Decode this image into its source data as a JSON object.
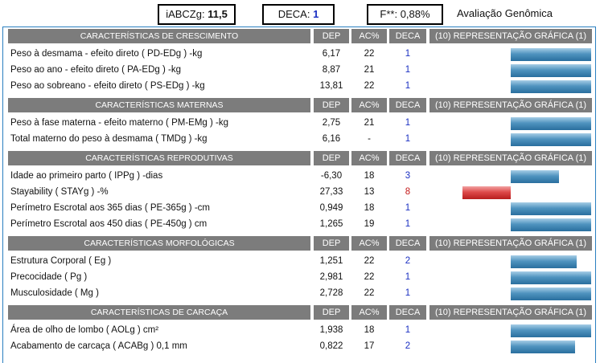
{
  "summary": {
    "iabczg_label": "iABCZg:",
    "iabczg_value": "11,5",
    "deca_label": "DECA:",
    "deca_value": "1",
    "f_label": "F**:",
    "f_value": "0,88%",
    "title": "Avaliação Genômica"
  },
  "columns": {
    "dep": "DEP",
    "ac": "AC%",
    "deca": "DECA",
    "graph": "(10) REPRESENTAÇÃO GRÁFICA (1)"
  },
  "colors": {
    "frame": "#2a7fc0",
    "header_bg": "#7c7c7c",
    "deca_blue": "#1a2fc2",
    "deca_red": "#c41a1a",
    "bar_positive": "#3d82b2",
    "bar_negative": "#d43636"
  },
  "sections": [
    {
      "title": "CARACTERÍSTICAS DE CRESCIMENTO",
      "rows": [
        {
          "name": "Peso à desmama - efeito direto ( PD-EDg ) -kg",
          "dep": "6,17",
          "ac": "22",
          "deca": "1",
          "bar": 1.0
        },
        {
          "name": "Peso ao ano - efeito direto ( PA-EDg ) -kg",
          "dep": "8,87",
          "ac": "21",
          "deca": "1",
          "bar": 1.0
        },
        {
          "name": "Peso ao sobreano - efeito direto ( PS-EDg ) -kg",
          "dep": "13,81",
          "ac": "22",
          "deca": "1",
          "bar": 1.0
        }
      ]
    },
    {
      "title": "CARACTERÍSTICAS MATERNAS",
      "rows": [
        {
          "name": "Peso à fase materna - efeito materno ( PM-EMg ) -kg",
          "dep": "2,75",
          "ac": "21",
          "deca": "1",
          "bar": 1.0
        },
        {
          "name": "Total materno do peso à desmama ( TMDg ) -kg",
          "dep": "6,16",
          "ac": "-",
          "deca": "1",
          "bar": 1.0
        }
      ]
    },
    {
      "title": "CARACTERÍSTICAS REPRODUTIVAS",
      "rows": [
        {
          "name": "Idade ao primeiro parto ( IPPg ) -dias",
          "dep": "-6,30",
          "ac": "18",
          "deca": "3",
          "bar": 0.6
        },
        {
          "name": "Stayability ( STAYg ) -%",
          "dep": "27,33",
          "ac": "13",
          "deca": "8",
          "bar": -0.6
        },
        {
          "name": "Perímetro Escrotal aos 365 dias ( PE-365g ) -cm",
          "dep": "0,949",
          "ac": "18",
          "deca": "1",
          "bar": 1.0
        },
        {
          "name": "Perímetro Escrotal aos 450 dias ( PE-450g ) cm",
          "dep": "1,265",
          "ac": "19",
          "deca": "1",
          "bar": 1.0
        }
      ]
    },
    {
      "title": "CARACTERÍSTICAS MORFOLÓGICAS",
      "rows": [
        {
          "name": "Estrutura Corporal ( Eg )",
          "dep": "1,251",
          "ac": "22",
          "deca": "2",
          "bar": 0.82
        },
        {
          "name": "Precocidade ( Pg )",
          "dep": "2,981",
          "ac": "22",
          "deca": "1",
          "bar": 1.0
        },
        {
          "name": "Musculosidade ( Mg )",
          "dep": "2,728",
          "ac": "22",
          "deca": "1",
          "bar": 1.0
        }
      ]
    },
    {
      "title": "CARACTERÍSTICAS DE CARCAÇA",
      "rows": [
        {
          "name": "Área de olho de lombo ( AOLg ) cm²",
          "dep": "1,938",
          "ac": "18",
          "deca": "1",
          "bar": 1.0
        },
        {
          "name": "Acabamento de carcaça ( ACABg ) 0,1 mm",
          "dep": "0,822",
          "ac": "17",
          "deca": "2",
          "bar": 0.8
        }
      ]
    }
  ]
}
